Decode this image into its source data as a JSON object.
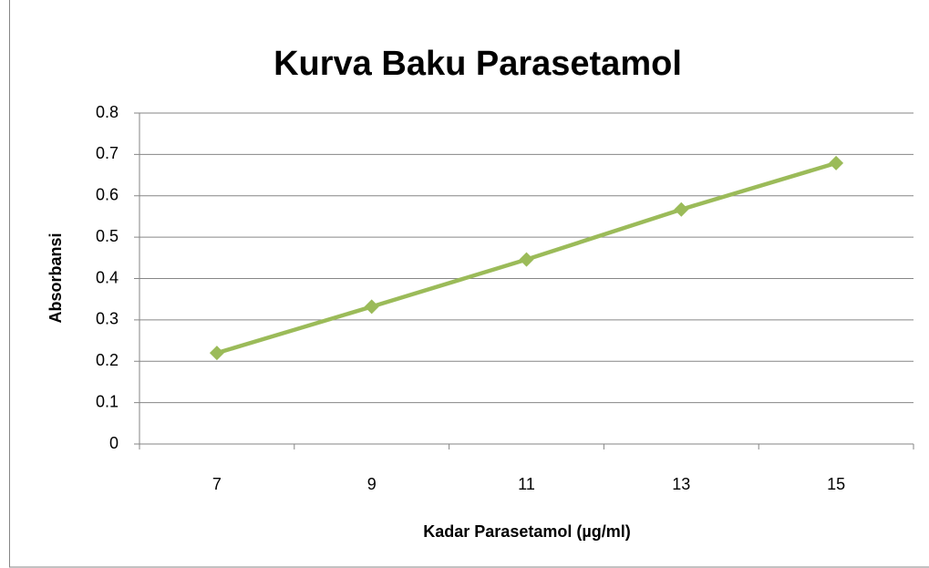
{
  "chart_data": {
    "type": "line",
    "title": "Kurva Baku Parasetamol",
    "x_label": "Kadar Parasetamol (µg/ml)",
    "y_label": "Absorbansi",
    "categories": [
      "7",
      "9",
      "11",
      "13",
      "15"
    ],
    "values": [
      0.22,
      0.332,
      0.446,
      0.567,
      0.679
    ],
    "color": "#9bbb59",
    "ylim": [
      0,
      0.8
    ],
    "yticks": [
      0,
      0.1,
      0.2,
      0.3,
      0.4,
      0.5,
      0.6,
      0.7,
      0.8
    ],
    "grid": true
  }
}
